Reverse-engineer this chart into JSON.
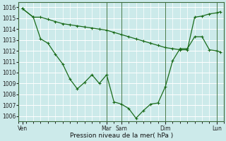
{
  "background_color": "#cceaea",
  "grid_color": "#ffffff",
  "line_color": "#1a6b1a",
  "xlabel": "Pression niveau de la mer( hPa )",
  "ylim": [
    1005.5,
    1016.5
  ],
  "yticks": [
    1006,
    1007,
    1008,
    1009,
    1010,
    1011,
    1012,
    1013,
    1014,
    1015,
    1016
  ],
  "xlim": [
    0,
    28
  ],
  "major_xtick_positions": [
    0.5,
    12,
    14,
    20,
    27
  ],
  "major_xtick_labels": [
    "Ven",
    "Mar",
    "Sam",
    "Dim",
    "Lun"
  ],
  "vline_positions": [
    0,
    12,
    14,
    20,
    27,
    28
  ],
  "line1_x": [
    0.5,
    2,
    3,
    4,
    5,
    6,
    7,
    8,
    9,
    10,
    11,
    12,
    13,
    14,
    15,
    16,
    17,
    18,
    19,
    20,
    21,
    22,
    23,
    24,
    25,
    26,
    27,
    27.5
  ],
  "line1_y": [
    1015.9,
    1015.1,
    1015.1,
    1014.9,
    1014.7,
    1014.5,
    1014.4,
    1014.3,
    1014.2,
    1014.1,
    1014.0,
    1013.9,
    1013.7,
    1013.5,
    1013.3,
    1013.1,
    1012.9,
    1012.7,
    1012.5,
    1012.3,
    1012.2,
    1012.1,
    1012.1,
    1015.1,
    1015.2,
    1015.4,
    1015.5,
    1015.6
  ],
  "line2_x": [
    0.5,
    2,
    3,
    4,
    5,
    6,
    7,
    8,
    9,
    10,
    11,
    12,
    13,
    14,
    15,
    16,
    17,
    18,
    19,
    20,
    21,
    22,
    23,
    24,
    25,
    26,
    27,
    27.5
  ],
  "line2_y": [
    1015.9,
    1015.1,
    1013.1,
    1012.7,
    1011.7,
    1010.8,
    1009.4,
    1008.5,
    1009.1,
    1009.8,
    1009.0,
    1009.8,
    1007.3,
    1007.1,
    1006.7,
    1005.8,
    1006.5,
    1007.1,
    1007.2,
    1008.7,
    1011.1,
    1012.2,
    1012.2,
    1013.3,
    1013.3,
    1012.1,
    1012.0,
    1011.9
  ]
}
